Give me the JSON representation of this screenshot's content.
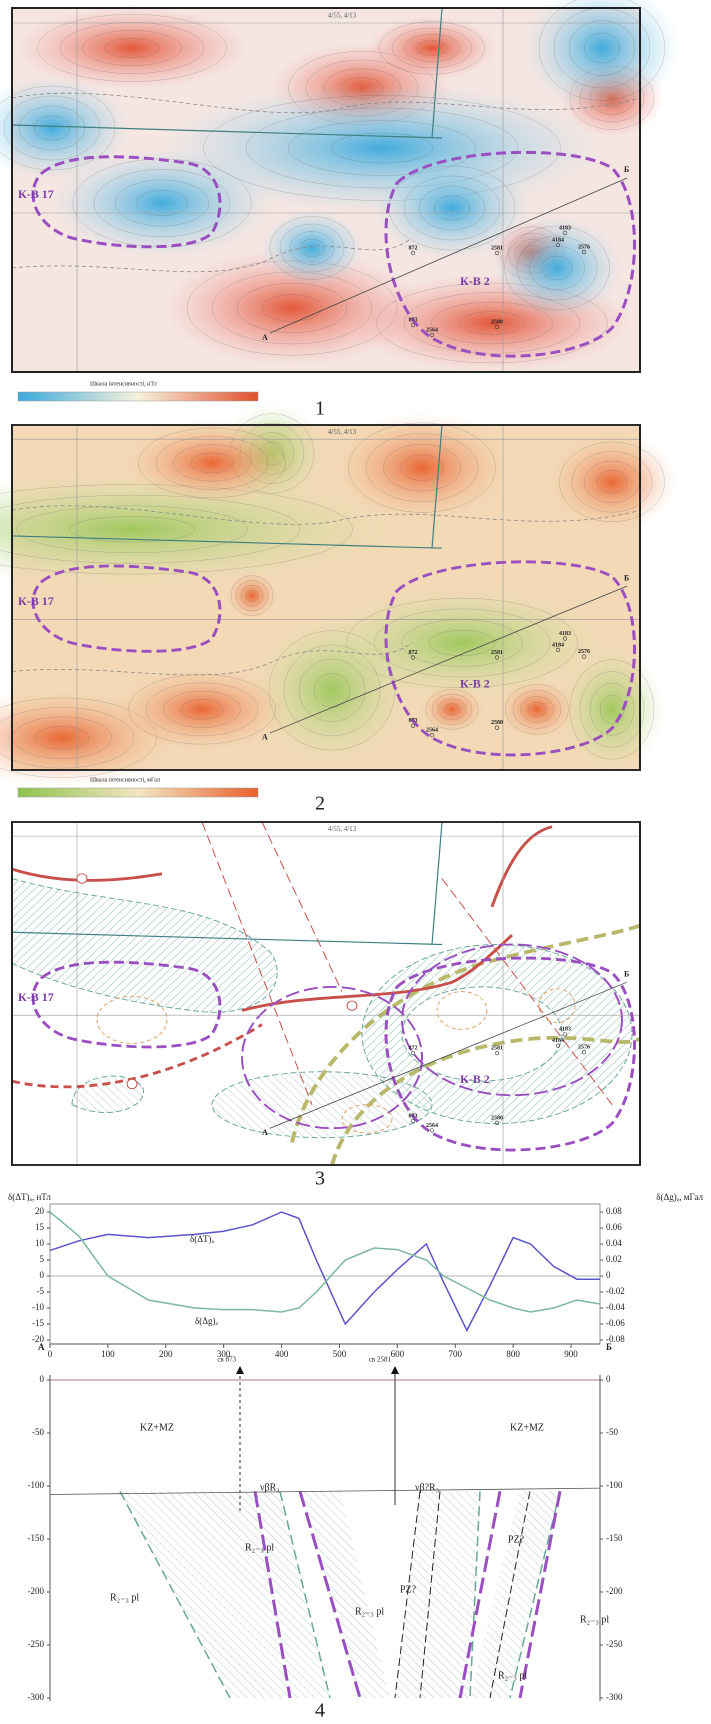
{
  "panels": [
    {
      "number": "1",
      "sheet": "4/55, 4/13",
      "deposits": [
        "К-В 17",
        "К-В 2"
      ],
      "profile_ends": [
        "А",
        "Б"
      ],
      "wells": [
        "872",
        "2581",
        "4183",
        "4184",
        "2576",
        "873",
        "2564",
        "2580"
      ],
      "scale_title": "Шкала інтенсивності, нТл"
    },
    {
      "number": "2",
      "sheet": "4/55, 4/13",
      "deposits": [
        "К-В 17",
        "К-В 2"
      ],
      "profile_ends": [
        "А",
        "Б"
      ],
      "wells": [
        "872",
        "2581",
        "4183",
        "4184",
        "2576",
        "873",
        "2564",
        "2580"
      ],
      "scale_title": "Шкала інтенсивності, мГал"
    },
    {
      "number": "3",
      "sheet": "4/55, 4/13",
      "deposits": [
        "К-В 17",
        "К-В 2"
      ],
      "profile_ends": [
        "А",
        "Б"
      ],
      "wells": [
        "872",
        "2581",
        "4183",
        "4184",
        "2576",
        "873",
        "2564",
        "2580"
      ]
    }
  ],
  "chart_data": {
    "type": "line",
    "number": "4",
    "y_label": "δ(ΔT)ₐ, нТл",
    "y2_label": "δ(Δg)ₐ, мГал",
    "profile_ends": [
      "А",
      "Б"
    ],
    "x": [
      0,
      50,
      100,
      170,
      250,
      300,
      350,
      400,
      430,
      460,
      510,
      560,
      600,
      650,
      680,
      720,
      760,
      800,
      830,
      870,
      910,
      950
    ],
    "xlim": [
      0,
      950
    ],
    "xticks": [
      0,
      100,
      200,
      300,
      400,
      500,
      600,
      700,
      800,
      900
    ],
    "ylim": [
      -20,
      20
    ],
    "yticks": [
      20,
      15,
      10,
      5,
      0,
      -5,
      -10,
      -15,
      -20
    ],
    "y2lim": [
      -0.08,
      0.08
    ],
    "y2ticks": [
      0.08,
      0.06,
      0.04,
      0.02,
      0,
      -0.02,
      -0.04,
      -0.06,
      -0.08
    ],
    "series": [
      {
        "name": "δ(ΔT)ₐ",
        "color": "#5b55cc",
        "values": [
          8,
          11,
          13,
          12,
          13,
          14,
          16,
          20,
          18,
          5,
          -15,
          -5,
          2,
          10,
          -2,
          -17,
          -3,
          12,
          10,
          3,
          -1,
          -1
        ]
      },
      {
        "name": "δ(Δg)ₐ",
        "color": "#7db89c",
        "axis": "y2",
        "values": [
          0.08,
          0.05,
          0.0,
          -0.03,
          -0.04,
          -0.042,
          -0.042,
          -0.045,
          -0.04,
          -0.02,
          0.02,
          0.035,
          0.033,
          0.02,
          0.0,
          -0.015,
          -0.03,
          -0.04,
          -0.045,
          -0.04,
          -0.03,
          -0.035
        ]
      }
    ]
  },
  "section": {
    "ylim": [
      -300,
      0
    ],
    "yticks": [
      0,
      -50,
      -100,
      -150,
      -200,
      -250,
      -300
    ],
    "wells": [
      "св 873",
      "св 2581"
    ],
    "units": [
      "KZ+MZ",
      "KZ+MZ",
      "νβR₃",
      "νβ?R₃",
      "R₂₋₃ pl",
      "R₂₋₃ pl",
      "R₂₋₃ pl",
      "R₂₋₃ pl",
      "R₂₋₃ pl",
      "PZ?",
      "PZ?"
    ]
  }
}
